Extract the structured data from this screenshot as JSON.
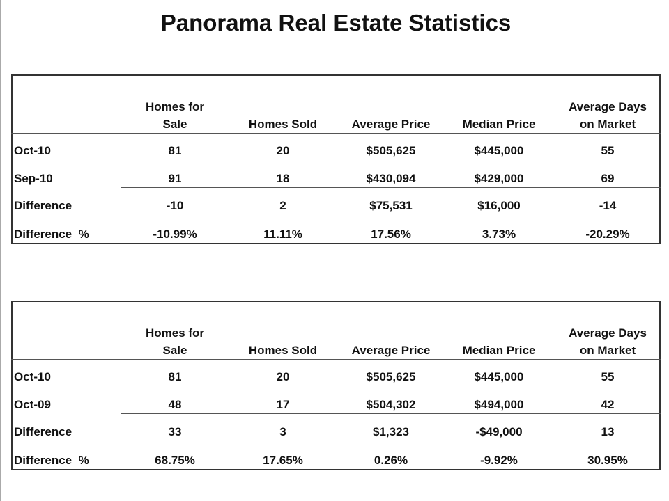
{
  "title": "Panorama Real Estate Statistics",
  "tables": [
    {
      "headers": [
        [
          "Homes for",
          "Sale"
        ],
        [
          "Homes Sold"
        ],
        [
          "Average Price"
        ],
        [
          "Median Price"
        ],
        [
          "Average Days",
          "on Market"
        ]
      ],
      "rows": [
        [
          "Oct-10",
          "81",
          "20",
          "$505,625",
          "$445,000",
          "55"
        ],
        [
          "Sep-10",
          "91",
          "18",
          "$430,094",
          "$429,000",
          "69"
        ],
        [
          "Difference",
          "-10",
          "2",
          "$75,531",
          "$16,000",
          "-14"
        ],
        [
          "Difference  %",
          "-10.99%",
          "11.11%",
          "17.56%",
          "3.73%",
          "-20.29%"
        ]
      ]
    },
    {
      "headers": [
        [
          "Homes for",
          "Sale"
        ],
        [
          "Homes Sold"
        ],
        [
          "Average Price"
        ],
        [
          "Median Price"
        ],
        [
          "Average Days",
          "on Market"
        ]
      ],
      "rows": [
        [
          "Oct-10",
          "81",
          "20",
          "$505,625",
          "$445,000",
          "55"
        ],
        [
          "Oct-09",
          "48",
          "17",
          "$504,302",
          "$494,000",
          "42"
        ],
        [
          "Difference",
          "33",
          "3",
          "$1,323",
          "-$49,000",
          "13"
        ],
        [
          "Difference  %",
          "68.75%",
          "17.65%",
          "0.26%",
          "-9.92%",
          "30.95%"
        ]
      ]
    }
  ]
}
